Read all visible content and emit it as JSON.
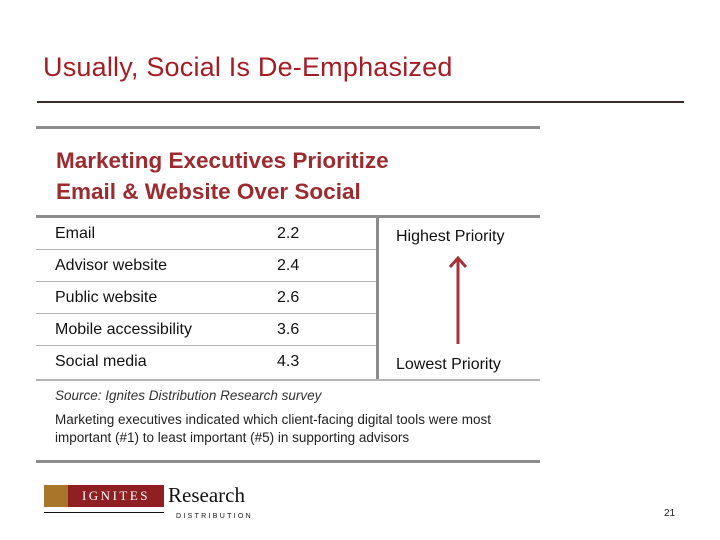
{
  "slide": {
    "title": "Usually, Social Is De-Emphasized",
    "page_number": "21"
  },
  "figure": {
    "heading_line1": "Marketing Executives Prioritize",
    "heading_line2": "Email & Website Over Social",
    "rows": [
      {
        "label": "Email",
        "value": "2.2"
      },
      {
        "label": "Advisor website",
        "value": "2.4"
      },
      {
        "label": "Public website",
        "value": "2.6"
      },
      {
        "label": "Mobile accessibility",
        "value": "3.6"
      },
      {
        "label": "Social media",
        "value": "4.3"
      }
    ],
    "priority_high": "Highest Priority",
    "priority_low": "Lowest Priority",
    "source": "Source: Ignites Distribution Research survey",
    "note": "Marketing executives indicated which client-facing digital tools were most important (#1) to least important (#5) in supporting advisors"
  },
  "logo": {
    "box_text": "IGNITES",
    "word": "Research",
    "sub": "DISTRIBUTION"
  },
  "colors": {
    "title": "#a51c24",
    "heading": "#9b2b2f",
    "arrow": "#a8323a"
  }
}
